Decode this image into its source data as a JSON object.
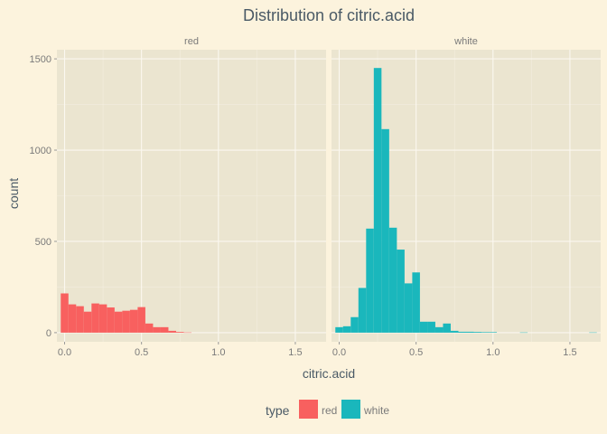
{
  "chart_data": {
    "type": "bar",
    "title": "Distribution of  citric.acid",
    "xlabel": "citric.acid",
    "ylabel": "count",
    "xlim": [
      -0.05,
      1.7
    ],
    "ylim": [
      -50,
      1550
    ],
    "x_ticks": [
      0.0,
      0.5,
      1.0,
      1.5
    ],
    "x_tick_labels": [
      "0.0",
      "0.5",
      "1.0",
      "1.5"
    ],
    "y_ticks": [
      0,
      500,
      1000,
      1500
    ],
    "y_tick_labels": [
      "0",
      "500",
      "1000",
      "1500"
    ],
    "bin_width": 0.05,
    "grid": true,
    "legend": {
      "title": "type",
      "position": "bottom",
      "entries": [
        {
          "label": "red",
          "color": "#f8605f"
        },
        {
          "label": "white",
          "color": "#1ab7bc"
        }
      ]
    },
    "panels": [
      {
        "name": "red",
        "color": "#f8605f",
        "bins": [
          {
            "x": 0.0,
            "count": 215
          },
          {
            "x": 0.05,
            "count": 155
          },
          {
            "x": 0.1,
            "count": 145
          },
          {
            "x": 0.15,
            "count": 115
          },
          {
            "x": 0.2,
            "count": 160
          },
          {
            "x": 0.25,
            "count": 155
          },
          {
            "x": 0.3,
            "count": 138
          },
          {
            "x": 0.35,
            "count": 115
          },
          {
            "x": 0.4,
            "count": 120
          },
          {
            "x": 0.45,
            "count": 125
          },
          {
            "x": 0.5,
            "count": 140
          },
          {
            "x": 0.55,
            "count": 50
          },
          {
            "x": 0.6,
            "count": 30
          },
          {
            "x": 0.65,
            "count": 30
          },
          {
            "x": 0.7,
            "count": 10
          },
          {
            "x": 0.75,
            "count": 4
          },
          {
            "x": 0.8,
            "count": 1
          }
        ]
      },
      {
        "name": "white",
        "color": "#1ab7bc",
        "bins": [
          {
            "x": 0.0,
            "count": 30
          },
          {
            "x": 0.05,
            "count": 35
          },
          {
            "x": 0.1,
            "count": 85
          },
          {
            "x": 0.15,
            "count": 245
          },
          {
            "x": 0.2,
            "count": 570
          },
          {
            "x": 0.25,
            "count": 1450
          },
          {
            "x": 0.3,
            "count": 1115
          },
          {
            "x": 0.35,
            "count": 575
          },
          {
            "x": 0.4,
            "count": 455
          },
          {
            "x": 0.45,
            "count": 270
          },
          {
            "x": 0.5,
            "count": 330
          },
          {
            "x": 0.55,
            "count": 60
          },
          {
            "x": 0.6,
            "count": 60
          },
          {
            "x": 0.65,
            "count": 30
          },
          {
            "x": 0.7,
            "count": 50
          },
          {
            "x": 0.75,
            "count": 10
          },
          {
            "x": 0.8,
            "count": 5
          },
          {
            "x": 0.85,
            "count": 5
          },
          {
            "x": 0.9,
            "count": 4
          },
          {
            "x": 0.95,
            "count": 3
          },
          {
            "x": 1.0,
            "count": 3
          },
          {
            "x": 1.2,
            "count": 1
          },
          {
            "x": 1.65,
            "count": 1
          }
        ]
      }
    ]
  }
}
